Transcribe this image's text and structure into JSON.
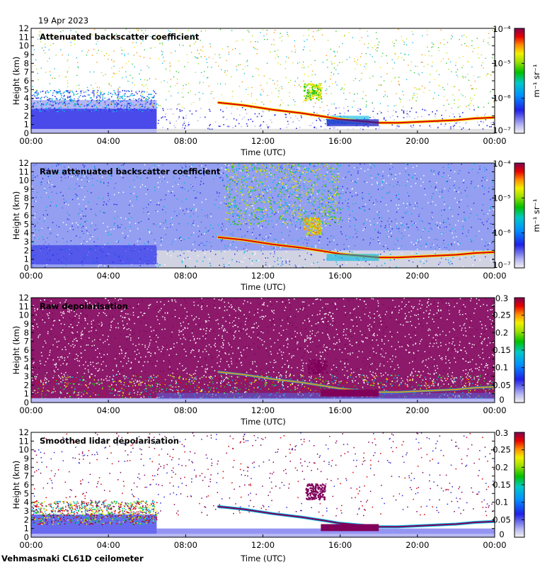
{
  "header": {
    "date": "19 Apr 2023"
  },
  "footer": {
    "site_label": "Vehmasmaki CL61D ceilometer"
  },
  "chart_data": [
    {
      "type": "heatmap",
      "title": "Attenuated backscatter coefficient",
      "xlabel": "Time (UTC)",
      "ylabel": "Height (km)",
      "xticks": [
        "00:00",
        "04:00",
        "08:00",
        "12:00",
        "16:00",
        "20:00",
        "00:00"
      ],
      "yticks": [
        "0",
        "1",
        "2",
        "3",
        "4",
        "5",
        "6",
        "7",
        "8",
        "9",
        "10",
        "11",
        "12"
      ],
      "ylim": [
        0,
        12
      ],
      "xlim_hours": [
        0,
        24
      ],
      "colorbar": {
        "scale": "log",
        "unit_label": "m⁻¹ sr⁻¹",
        "range": [
          1e-07,
          0.0001
        ],
        "tick_labels": [
          "10⁻⁴",
          "10⁻⁵",
          "10⁻⁶",
          "10⁻⁷"
        ]
      }
    },
    {
      "type": "heatmap",
      "title": "Raw attenuated backscatter coefficient",
      "xlabel": "Time (UTC)",
      "ylabel": "Height (km)",
      "xticks": [
        "00:00",
        "04:00",
        "08:00",
        "12:00",
        "16:00",
        "20:00",
        "00:00"
      ],
      "yticks": [
        "0",
        "1",
        "2",
        "3",
        "4",
        "5",
        "6",
        "7",
        "8",
        "9",
        "10",
        "11",
        "12"
      ],
      "ylim": [
        0,
        12
      ],
      "xlim_hours": [
        0,
        24
      ],
      "colorbar": {
        "scale": "log",
        "unit_label": "m⁻¹ sr⁻¹",
        "range": [
          1e-07,
          0.0001
        ],
        "tick_labels": [
          "10⁻⁴",
          "10⁻⁵",
          "10⁻⁶",
          "10⁻⁷"
        ]
      }
    },
    {
      "type": "heatmap",
      "title": "Raw depolarisation",
      "xlabel": "Time (UTC)",
      "ylabel": "Height (km)",
      "xticks": [
        "00:00",
        "04:00",
        "08:00",
        "12:00",
        "16:00",
        "20:00",
        "00:00"
      ],
      "yticks": [
        "0",
        "1",
        "2",
        "3",
        "4",
        "5",
        "6",
        "7",
        "8",
        "9",
        "10",
        "11",
        "12"
      ],
      "ylim": [
        0,
        12
      ],
      "xlim_hours": [
        0,
        24
      ],
      "colorbar": {
        "scale": "linear",
        "unit_label": "",
        "range": [
          0,
          0.3
        ],
        "tick_labels": [
          "0.3",
          "0.25",
          "0.2",
          "0.15",
          "0.1",
          "0.05",
          "0"
        ]
      }
    },
    {
      "type": "heatmap",
      "title": "Smoothed lidar depolarisation",
      "xlabel": "Time (UTC)",
      "ylabel": "Height (km)",
      "xticks": [
        "00:00",
        "04:00",
        "08:00",
        "12:00",
        "16:00",
        "20:00",
        "00:00"
      ],
      "yticks": [
        "0",
        "1",
        "2",
        "3",
        "4",
        "5",
        "6",
        "7",
        "8",
        "9",
        "10",
        "11",
        "12"
      ],
      "ylim": [
        0,
        12
      ],
      "xlim_hours": [
        0,
        24
      ],
      "colorbar": {
        "scale": "linear",
        "unit_label": "",
        "range": [
          0,
          0.3
        ],
        "tick_labels": [
          "0.3",
          "0.25",
          "0.2",
          "0.15",
          "0.1",
          "0.05",
          "0"
        ]
      }
    }
  ]
}
